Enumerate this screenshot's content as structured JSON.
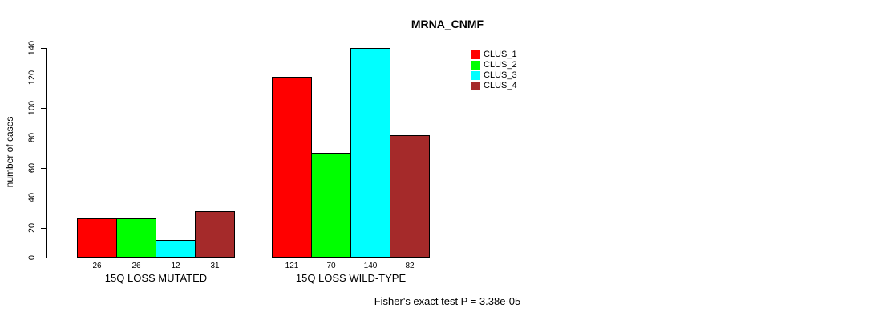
{
  "chart_data": {
    "type": "bar",
    "title": "MRNA_CNMF",
    "ylabel": "number of cases",
    "ylim": [
      0,
      140
    ],
    "yticks": [
      0,
      20,
      40,
      60,
      80,
      100,
      120,
      140
    ],
    "categories": [
      "15Q LOSS MUTATED",
      "15Q LOSS WILD-TYPE"
    ],
    "series": [
      {
        "name": "CLUS_1",
        "color": "#FF0000",
        "values": [
          26,
          121
        ]
      },
      {
        "name": "CLUS_2",
        "color": "#00FF00",
        "values": [
          26,
          70
        ]
      },
      {
        "name": "CLUS_3",
        "color": "#00FFFF",
        "values": [
          12,
          140
        ]
      },
      {
        "name": "CLUS_4",
        "color": "#A52A2A",
        "values": [
          31,
          82
        ]
      }
    ],
    "bar_value_labels": [
      [
        "26",
        "26",
        "12",
        "31"
      ],
      [
        "121",
        "70",
        "140",
        "82"
      ]
    ],
    "legend_position": "top-right",
    "grid": false,
    "annotation": "Fisher's exact test P = 3.38e-05"
  }
}
